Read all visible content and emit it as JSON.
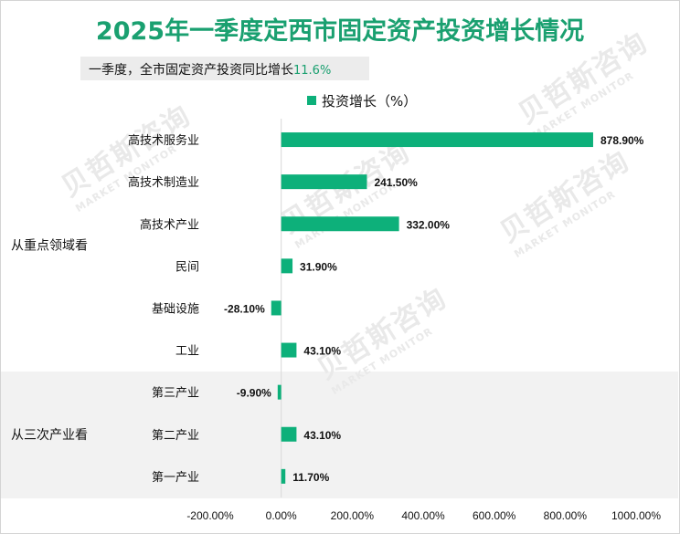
{
  "title": "2025年一季度定西市固定资产投资增长情况",
  "subtitle": {
    "text": "一季度，全市固定资产投资同比增长",
    "value": "11.6%"
  },
  "watermark": {
    "name": "贝哲斯咨询",
    "sub": "MARKET MONITOR"
  },
  "colors": {
    "bar": "#0db07a",
    "title": "#1aa070",
    "band": "#f2f2f2"
  },
  "chart_data": {
    "type": "bar",
    "orientation": "horizontal",
    "legend": {
      "label": "投资增长（%）",
      "position": "top"
    },
    "groups": [
      {
        "label": "从重点领域看",
        "categories": [
          "高技术服务业",
          "高技术制造业",
          "高技术产业",
          "民间",
          "基础设施",
          "工业"
        ]
      },
      {
        "label": "从三次产业看",
        "categories": [
          "第三产业",
          "第二产业",
          "第一产业"
        ]
      }
    ],
    "categories": [
      "高技术服务业",
      "高技术制造业",
      "高技术产业",
      "民间",
      "基础设施",
      "工业",
      "第三产业",
      "第二产业",
      "第一产业"
    ],
    "series": [
      {
        "name": "投资增长（%）",
        "values": [
          878.9,
          241.5,
          332.0,
          31.9,
          -28.1,
          43.1,
          -9.9,
          43.1,
          11.7
        ]
      }
    ],
    "data_labels": [
      "878.90%",
      "241.50%",
      "332.00%",
      "31.90%",
      "-28.10%",
      "43.10%",
      "-9.90%",
      "43.10%",
      "11.70%"
    ],
    "xlim": [
      -200,
      1000
    ],
    "x_ticks": [
      -200,
      0,
      200,
      400,
      600,
      800,
      1000
    ],
    "x_tick_labels": [
      "-200.00%",
      "0.00%",
      "200.00%",
      "400.00%",
      "600.00%",
      "800.00%",
      "1000.00%"
    ],
    "grid": false
  }
}
